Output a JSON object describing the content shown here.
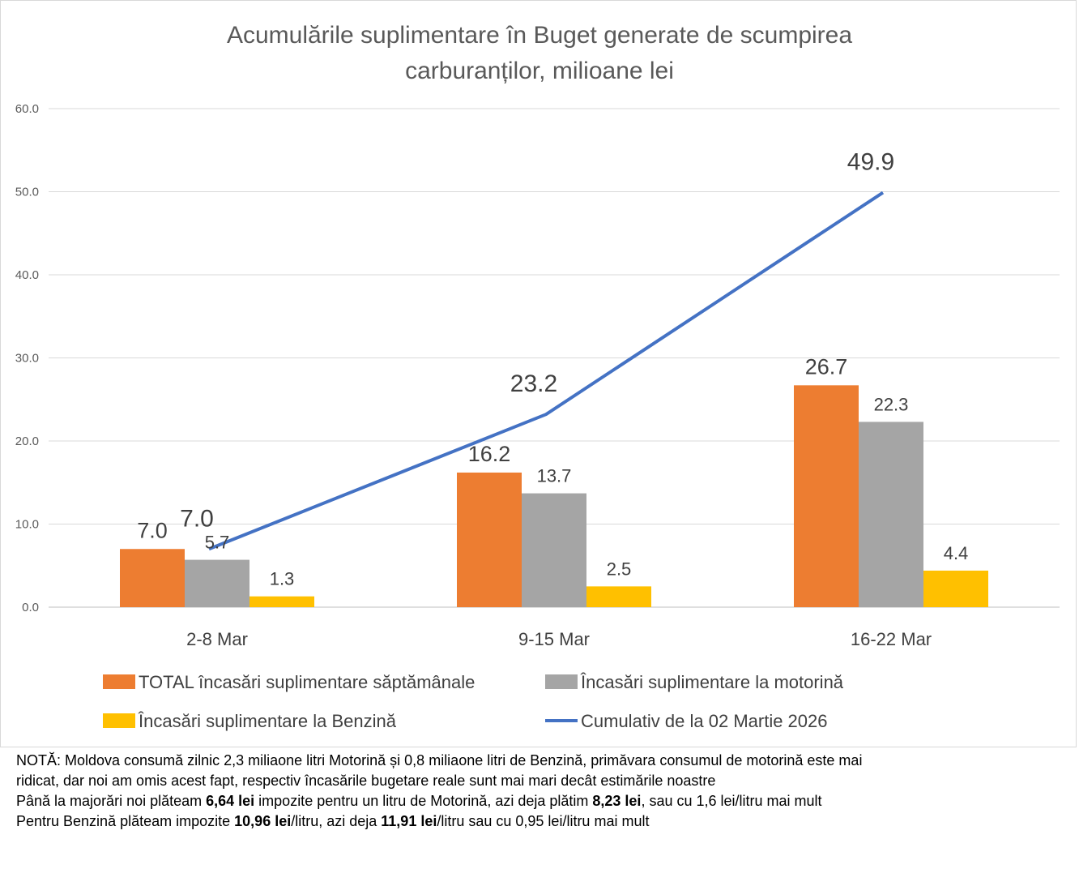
{
  "chart_data": {
    "type": "bar",
    "title_lines": [
      "Acumulările suplimentare în Buget generate de scumpirea",
      "carburanților, milioane lei"
    ],
    "categories": [
      "2-8 Mar",
      "9-15 Mar",
      "16-22 Mar"
    ],
    "ylim": [
      0,
      60
    ],
    "yticks": [
      0,
      10,
      20,
      30,
      40,
      50,
      60
    ],
    "ytick_labels": [
      "0.0",
      "10.0",
      "20.0",
      "30.0",
      "40.0",
      "50.0",
      "60.0"
    ],
    "grid": true,
    "legend_position": "bottom",
    "series": [
      {
        "name": "TOTAL încasări suplimentare săptămânale",
        "kind": "bar",
        "color": "#ED7D31",
        "values": [
          7.0,
          16.2,
          26.7
        ],
        "labels": [
          "7.0",
          "16.2",
          "26.7"
        ]
      },
      {
        "name": "Încasări suplimentare la motorină",
        "kind": "bar",
        "color": "#A5A5A5",
        "values": [
          5.7,
          13.7,
          22.3
        ],
        "labels": [
          "5.7",
          "13.7",
          "22.3"
        ]
      },
      {
        "name": "Încasări suplimentare la Benzină",
        "kind": "bar",
        "color": "#FFC000",
        "values": [
          1.3,
          2.5,
          4.4
        ],
        "labels": [
          "1.3",
          "2.5",
          "4.4"
        ]
      },
      {
        "name": "Cumulativ de la 02 Martie 2026",
        "kind": "line",
        "color": "#4472C4",
        "values": [
          7.0,
          23.2,
          49.9
        ],
        "labels": [
          "7.0",
          "23.2",
          "49.9"
        ]
      }
    ]
  },
  "notes": {
    "line1": "NOTĂ: Moldova consumă zilnic 2,3 miliaone litri Motorină și 0,8 miliaone litri de Benzină, primăvara consumul de motorină este mai",
    "line2": "ridicat, dar noi am omis acest fapt, respectiv încasările bugetare reale sunt mai mari decât estimările noastre",
    "line3_a": "Până la majorări noi plăteam ",
    "line3_b": "6,64 lei",
    "line3_c": " impozite pentru un litru de Motorină, azi deja plătim ",
    "line3_d": "8,23 lei",
    "line3_e": ", sau cu 1,6 lei/litru mai mult",
    "line4_a": "Pentru Benzină plăteam impozite ",
    "line4_b": "10,96 lei",
    "line4_c": "/litru, azi deja ",
    "line4_d": "11,91 lei",
    "line4_e": "/litru sau cu  0,95 lei/litru mai mult"
  }
}
